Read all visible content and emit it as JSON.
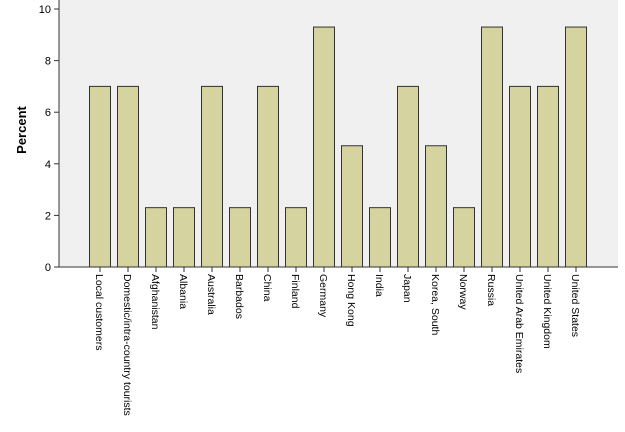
{
  "chart_data": {
    "type": "bar",
    "title": "",
    "xlabel": "",
    "ylabel": "Percent",
    "ylim": [
      0,
      10
    ],
    "yticks": [
      0,
      2,
      4,
      6,
      8,
      10
    ],
    "grid": false,
    "categories": [
      "Local customers",
      "Domestic/intra-country tourists",
      "Afghanistan",
      "Albania",
      "Australia",
      "Barbados",
      "China",
      "Finland",
      "Germany",
      "Hong Kong",
      "India",
      "Japan",
      "Korea, South",
      "Norway",
      "Russia",
      "United Arab Emirates",
      "United Kingdom",
      "United States"
    ],
    "values": [
      7.0,
      7.0,
      2.3,
      2.3,
      7.0,
      2.3,
      7.0,
      2.3,
      9.3,
      4.7,
      2.3,
      7.0,
      4.7,
      2.3,
      9.3,
      7.0,
      7.0,
      9.3
    ],
    "colors": {
      "bar_fill": "#d5d3a0",
      "bar_stroke": "#333333",
      "plot_background": "#f0f0f0",
      "axis": "#333333",
      "text": "#000000"
    }
  }
}
